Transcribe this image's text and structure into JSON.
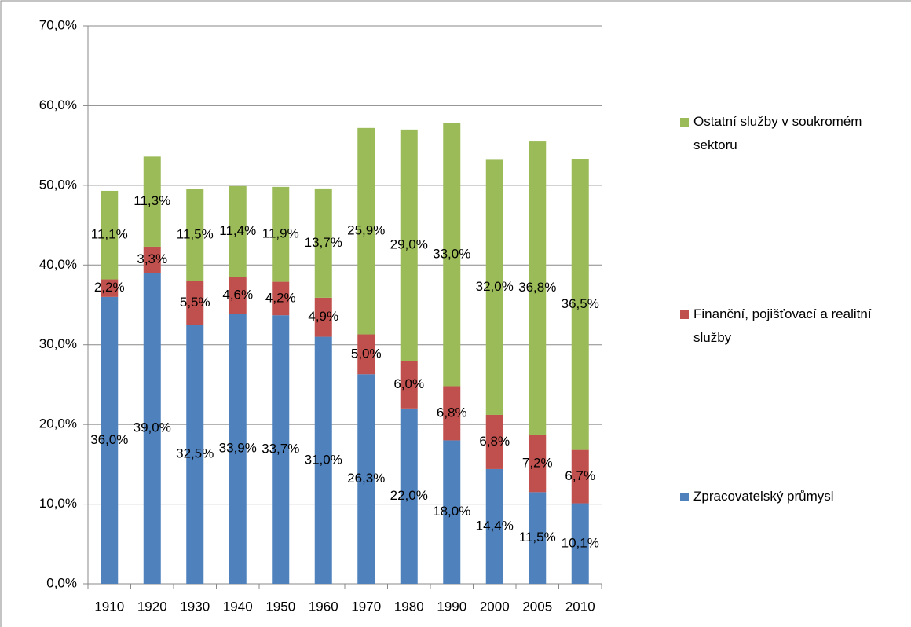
{
  "chart_data": {
    "type": "stacked_bar",
    "categories": [
      "1910",
      "1920",
      "1930",
      "1940",
      "1950",
      "1960",
      "1970",
      "1980",
      "1990",
      "2000",
      "2005",
      "2010"
    ],
    "series": [
      {
        "name": "Zpracovatelský průmysl",
        "color": "#4f81bd",
        "values": [
          36.0,
          39.0,
          32.5,
          33.9,
          33.7,
          31.0,
          26.3,
          22.0,
          18.0,
          14.4,
          11.5,
          10.1
        ],
        "value_labels": [
          "36,0%",
          "39,0%",
          "32,5%",
          "33,9%",
          "33,7%",
          "31,0%",
          "26,3%",
          "22,0%",
          "18,0%",
          "14,4%",
          "11,5%",
          "10,1%"
        ]
      },
      {
        "name": "Finanční, pojišťovací a realitní služby",
        "color": "#c0504d",
        "values": [
          2.2,
          3.3,
          5.5,
          4.6,
          4.2,
          4.9,
          5.0,
          6.0,
          6.8,
          6.8,
          7.2,
          6.7
        ],
        "value_labels": [
          "2,2%",
          "3,3%",
          "5,5%",
          "4,6%",
          "4,2%",
          "4,9%",
          "5,0%",
          "6,0%",
          "6,8%",
          "6,8%",
          "7,2%",
          "6,7%"
        ]
      },
      {
        "name": "Ostatní služby v soukromém sektoru",
        "color": "#9bbb59",
        "values": [
          11.1,
          11.3,
          11.5,
          11.4,
          11.9,
          13.7,
          25.9,
          29.0,
          33.0,
          32.0,
          36.8,
          36.5
        ],
        "value_labels": [
          "11,1%",
          "11,3%",
          "11,5%",
          "11,4%",
          "11,9%",
          "13,7%",
          "25,9%",
          "29,0%",
          "33,0%",
          "32,0%",
          "36,8%",
          "36,5%"
        ]
      }
    ],
    "ylim": [
      0,
      70
    ],
    "yticks": [
      {
        "value": 0,
        "label": "0,0%"
      },
      {
        "value": 10,
        "label": "10,0%"
      },
      {
        "value": 20,
        "label": "20,0%"
      },
      {
        "value": 30,
        "label": "30,0%"
      },
      {
        "value": 40,
        "label": "40,0%"
      },
      {
        "value": 50,
        "label": "50,0%"
      },
      {
        "value": 60,
        "label": "60,0%"
      },
      {
        "value": 70,
        "label": "70,0%"
      }
    ],
    "grid": true,
    "legend": "right"
  }
}
